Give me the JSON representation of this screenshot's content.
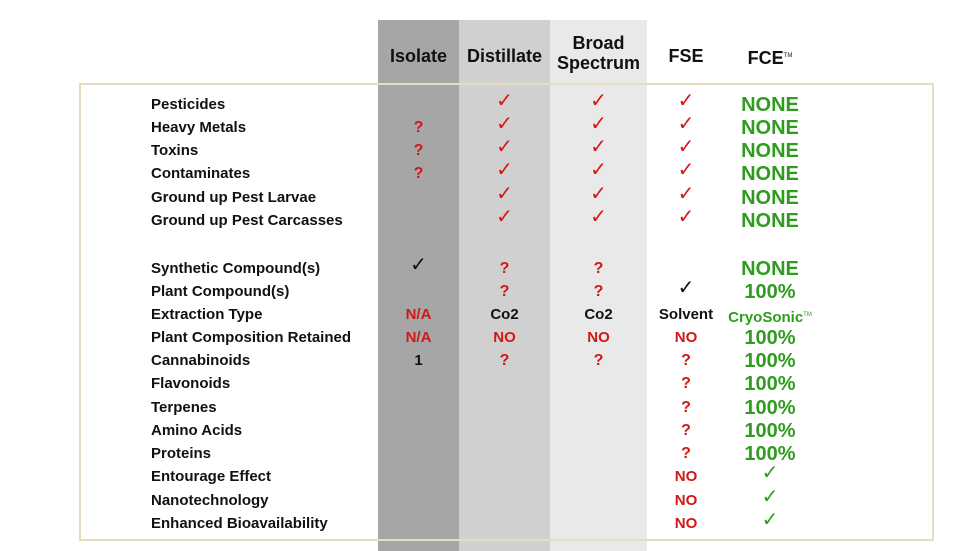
{
  "headers": {
    "isolate": "Isolate",
    "distillate": "Distillate",
    "broad_line1": "Broad",
    "broad_line2": "Spectrum",
    "fse": "FSE",
    "fce": "FCE",
    "fce_tm": "TM"
  },
  "rows": [
    {
      "label": "Pesticides",
      "isolate": "",
      "distillate": "✓",
      "broad": "✓",
      "fse": "✓",
      "fce": "NONE"
    },
    {
      "label": "Heavy Metals",
      "isolate": "?",
      "distillate": "✓",
      "broad": "✓",
      "fse": "✓",
      "fce": "NONE"
    },
    {
      "label": "Toxins",
      "isolate": "?",
      "distillate": "✓",
      "broad": "✓",
      "fse": "✓",
      "fce": "NONE"
    },
    {
      "label": "Contaminates",
      "isolate": "?",
      "distillate": "✓",
      "broad": "✓",
      "fse": "✓",
      "fce": "NONE"
    },
    {
      "label": "Ground up Pest Larvae",
      "isolate": "",
      "distillate": "✓",
      "broad": "✓",
      "fse": "✓",
      "fce": "NONE"
    },
    {
      "label": "Ground up Pest Carcasses",
      "isolate": "",
      "distillate": "✓",
      "broad": "✓",
      "fse": "✓",
      "fce": "NONE"
    },
    {
      "label": "Synthetic Compound(s)",
      "isolate": "✓",
      "distillate": "?",
      "broad": "?",
      "fse": "",
      "fce": "NONE"
    },
    {
      "label": "Plant Compound(s)",
      "isolate": "",
      "distillate": "?",
      "broad": "?",
      "fse": "✓",
      "fce": "100%"
    },
    {
      "label": "Extraction Type",
      "isolate": "N/A",
      "distillate": "Co2",
      "broad": "Co2",
      "fse": "Solvent",
      "fce": "CryoSonic",
      "fce_tm": "TM"
    },
    {
      "label": "Plant Composition Retained",
      "isolate": "N/A",
      "distillate": "NO",
      "broad": "NO",
      "fse": "NO",
      "fce": "100%"
    },
    {
      "label": "Cannabinoids",
      "isolate": "1",
      "distillate": "?",
      "broad": "?",
      "fse": "?",
      "fce": "100%"
    },
    {
      "label": "Flavonoids",
      "isolate": "",
      "distillate": "",
      "broad": "",
      "fse": "?",
      "fce": "100%"
    },
    {
      "label": "Terpenes",
      "isolate": "",
      "distillate": "",
      "broad": "",
      "fse": "?",
      "fce": "100%"
    },
    {
      "label": "Amino Acids",
      "isolate": "",
      "distillate": "",
      "broad": "",
      "fse": "?",
      "fce": "100%"
    },
    {
      "label": "Proteins",
      "isolate": "",
      "distillate": "",
      "broad": "",
      "fse": "?",
      "fce": "100%"
    },
    {
      "label": "Entourage Effect",
      "isolate": "",
      "distillate": "",
      "broad": "",
      "fse": "NO",
      "fce": "✓"
    },
    {
      "label": "Nanotechnology",
      "isolate": "",
      "distillate": "",
      "broad": "",
      "fse": "NO",
      "fce": "✓"
    },
    {
      "label": "Enhanced Bioavailability",
      "isolate": "",
      "distillate": "",
      "broad": "",
      "fse": "NO",
      "fce": "✓"
    }
  ],
  "colors": {
    "red": "#d01818",
    "green": "#2f9b1f",
    "isolate_bg": "#a6a6a6",
    "distillate_bg": "#d0d0d0",
    "broad_bg": "#e9e9e9",
    "frame": "#e6dcc0"
  }
}
